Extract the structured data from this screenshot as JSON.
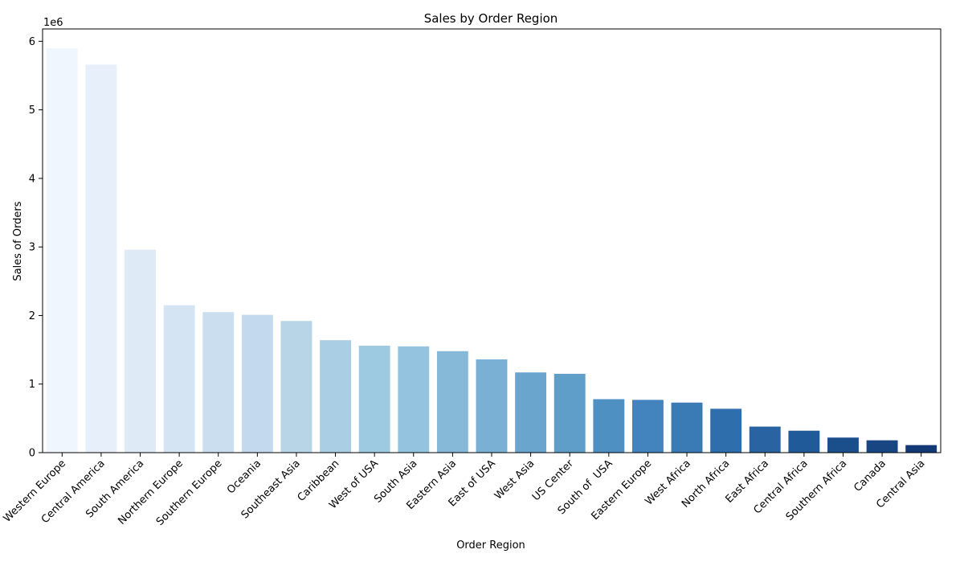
{
  "chart_data": {
    "type": "bar",
    "title": "Sales by Order Region",
    "xlabel": "Order Region",
    "ylabel": "Sales of Orders",
    "y_offset_text": "1e6",
    "ylim": [
      0,
      6180000
    ],
    "yticks": [
      0,
      1000000,
      2000000,
      3000000,
      4000000,
      5000000,
      6000000
    ],
    "ytick_labels": [
      "0",
      "1",
      "2",
      "3",
      "4",
      "5",
      "6"
    ],
    "grid": false,
    "legend": "none",
    "colormap": "Blues",
    "categories": [
      "Western Europe",
      "Central America",
      "South America",
      "Northern Europe",
      "Southern Europe",
      "Oceania",
      "Southeast Asia",
      "Caribbean",
      "West of USA",
      "South Asia",
      "Eastern Asia",
      "East of USA",
      "West Asia",
      "US Center",
      "South of  USA",
      "Eastern Europe",
      "West Africa",
      "North Africa",
      "East Africa",
      "Central Africa",
      "Southern Africa",
      "Canada",
      "Central Asia"
    ],
    "values": [
      5900000,
      5660000,
      2960000,
      2150000,
      2050000,
      2010000,
      1920000,
      1640000,
      1560000,
      1550000,
      1480000,
      1360000,
      1170000,
      1150000,
      780000,
      770000,
      730000,
      640000,
      380000,
      320000,
      220000,
      180000,
      110000
    ],
    "colors": [
      "#f0f6fd",
      "#e7f0fa",
      "#deebf7",
      "#d4e4f3",
      "#cadef0",
      "#c3d9ee",
      "#b8d5e8",
      "#aacee4",
      "#9ecae1",
      "#93c3df",
      "#86b8d7",
      "#79b0d4",
      "#6aa5cd",
      "#5e9ec9",
      "#4f90c2",
      "#4484be",
      "#3a7bb6",
      "#2f6eac",
      "#2963a1",
      "#215a98",
      "#1b4f8c",
      "#174683",
      "#133976"
    ]
  }
}
